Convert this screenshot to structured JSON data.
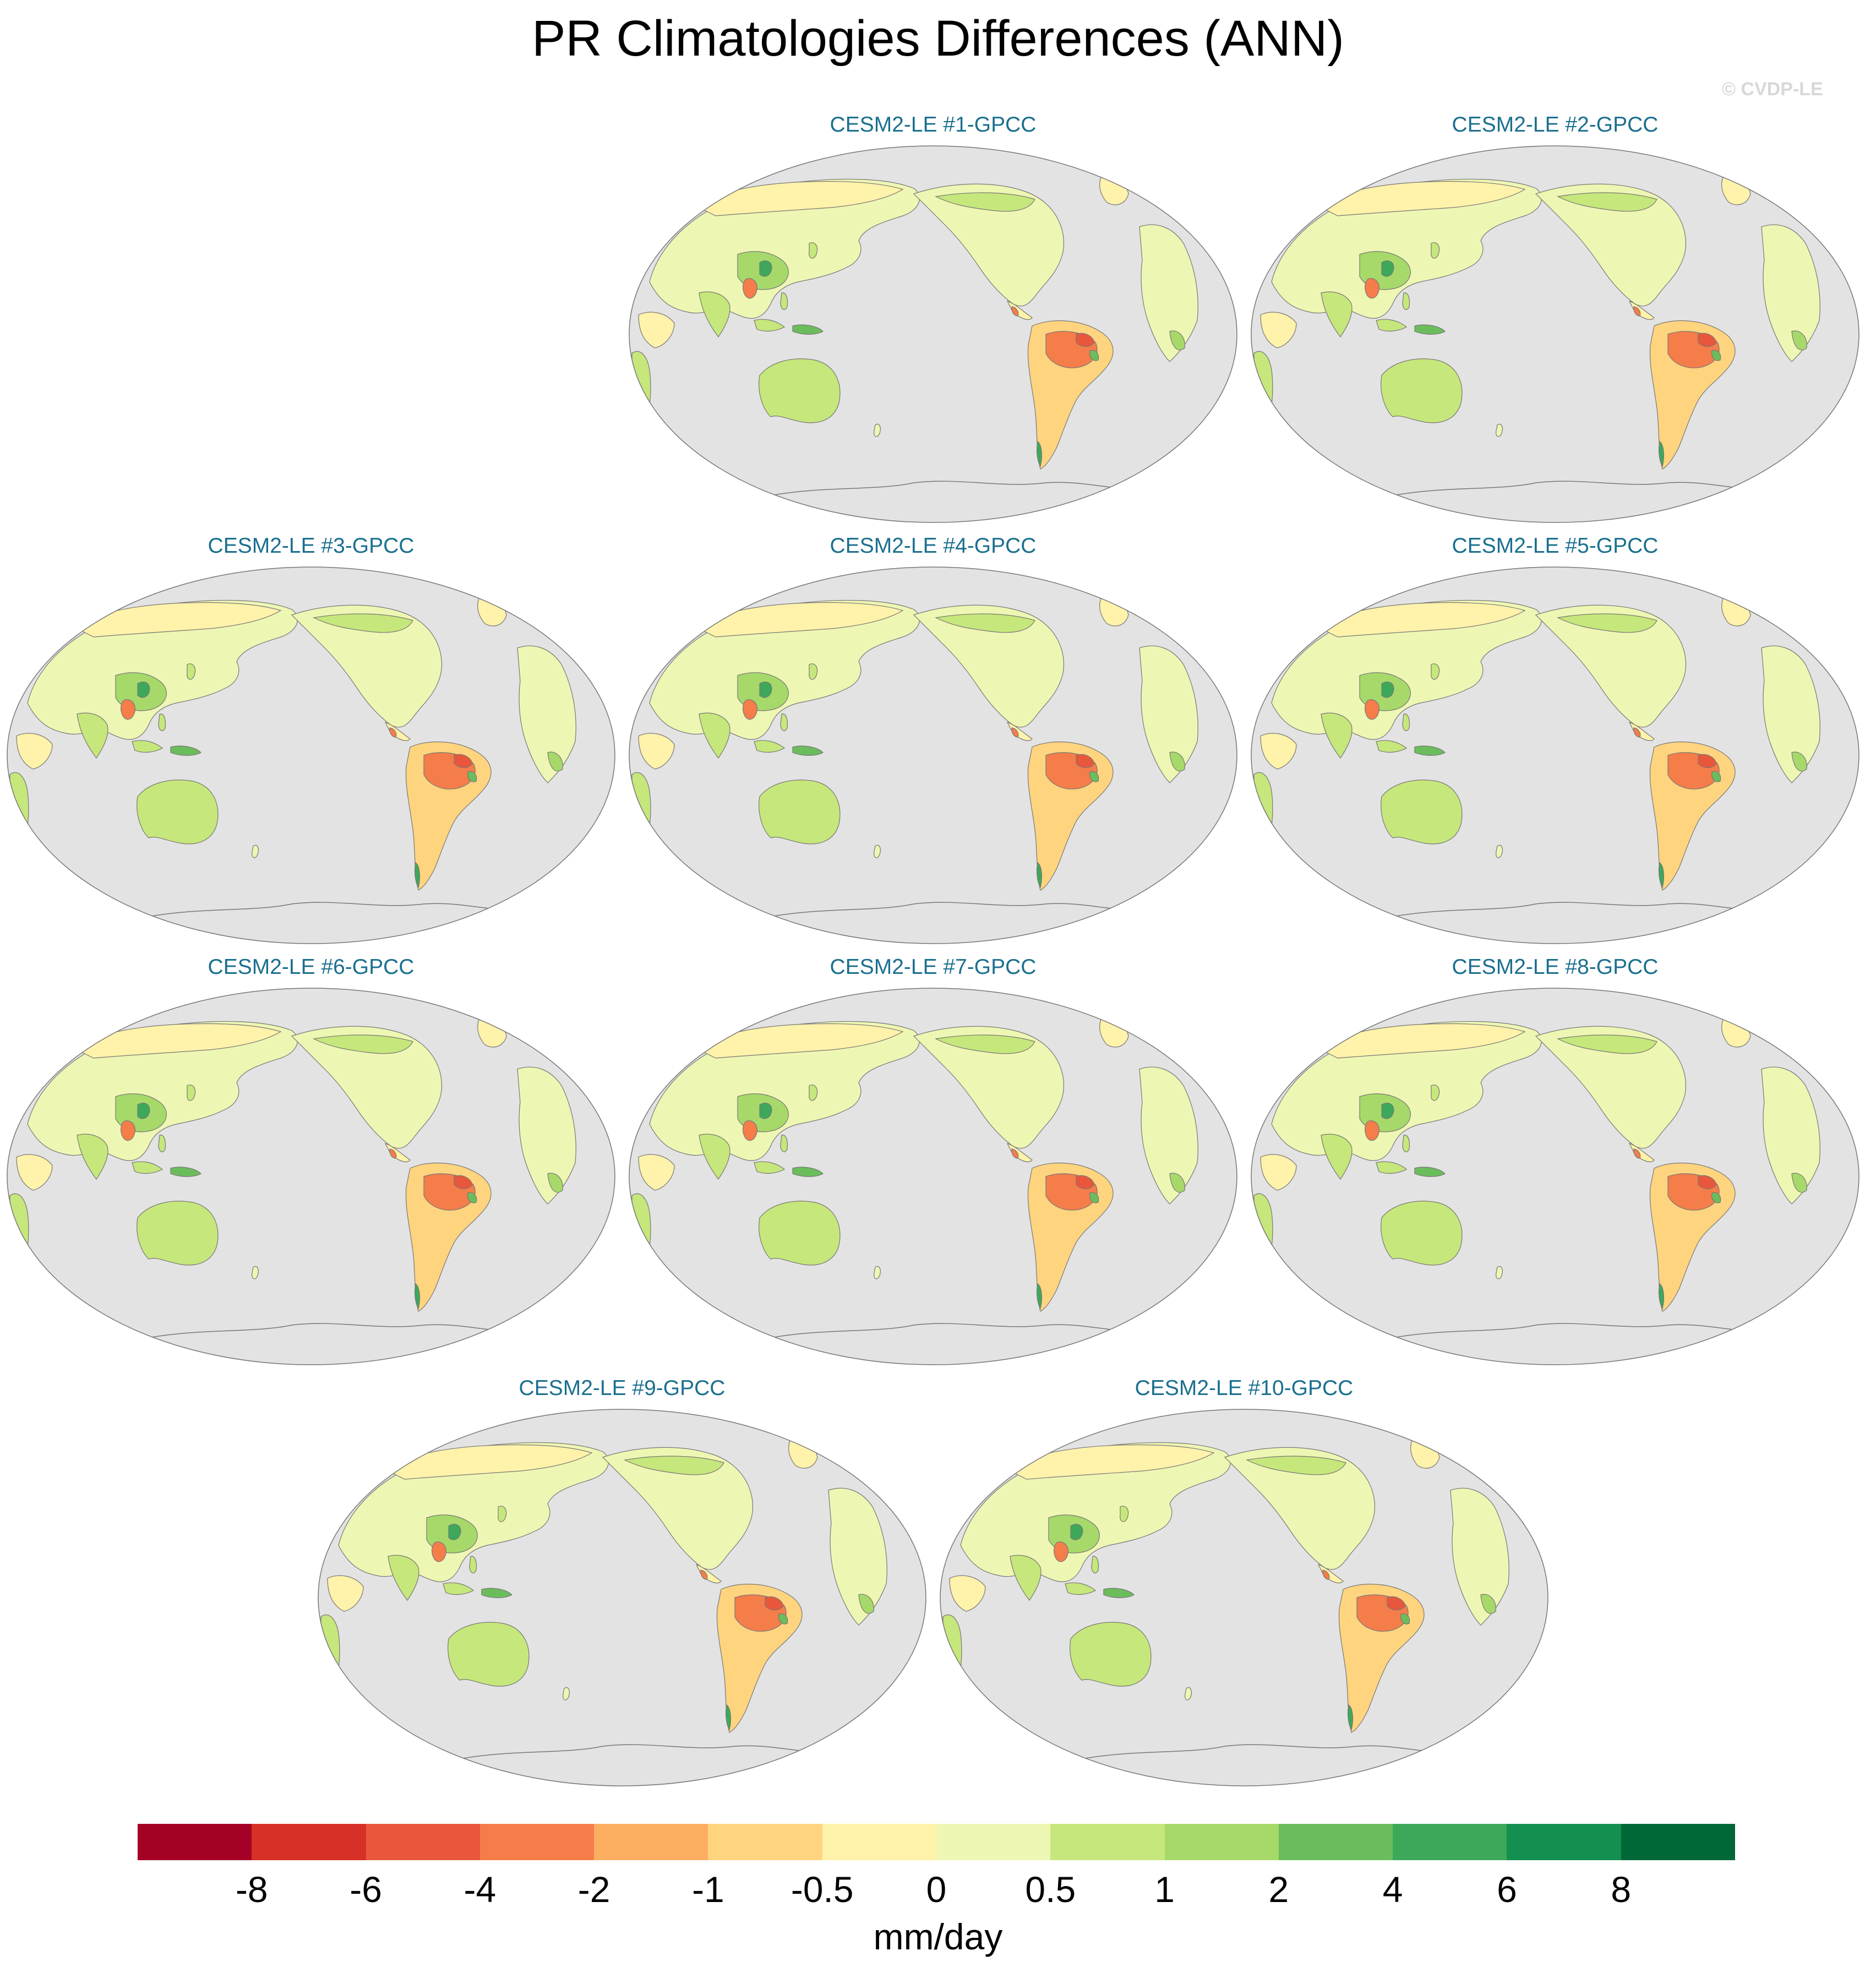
{
  "title": "PR Climatologies Differences (ANN)",
  "watermark": "© CVDP-LE",
  "panels": [
    {
      "label": "CESM2-LE #1-GPCC"
    },
    {
      "label": "CESM2-LE #2-GPCC"
    },
    {
      "label": "CESM2-LE #3-GPCC"
    },
    {
      "label": "CESM2-LE #4-GPCC"
    },
    {
      "label": "CESM2-LE #5-GPCC"
    },
    {
      "label": "CESM2-LE #6-GPCC"
    },
    {
      "label": "CESM2-LE #7-GPCC"
    },
    {
      "label": "CESM2-LE #8-GPCC"
    },
    {
      "label": "CESM2-LE #9-GPCC"
    },
    {
      "label": "CESM2-LE #10-GPCC"
    }
  ],
  "colorbar": {
    "units": "mm/day",
    "labels": [
      "-8",
      "-6",
      "-4",
      "-2",
      "-1",
      "-0.5",
      "0",
      "0.5",
      "1",
      "2",
      "4",
      "6",
      "8"
    ],
    "colors": [
      "#a50026",
      "#d73027",
      "#e8573b",
      "#f47d4a",
      "#fdae61",
      "#fed47f",
      "#fff2aa",
      "#eef6b3",
      "#c6e77b",
      "#a6d96a",
      "#6bbd5c",
      "#3da85a",
      "#13904f",
      "#006837"
    ]
  },
  "map_colors": {
    "ocean": "#e3e3e3",
    "outline": "#777777"
  }
}
